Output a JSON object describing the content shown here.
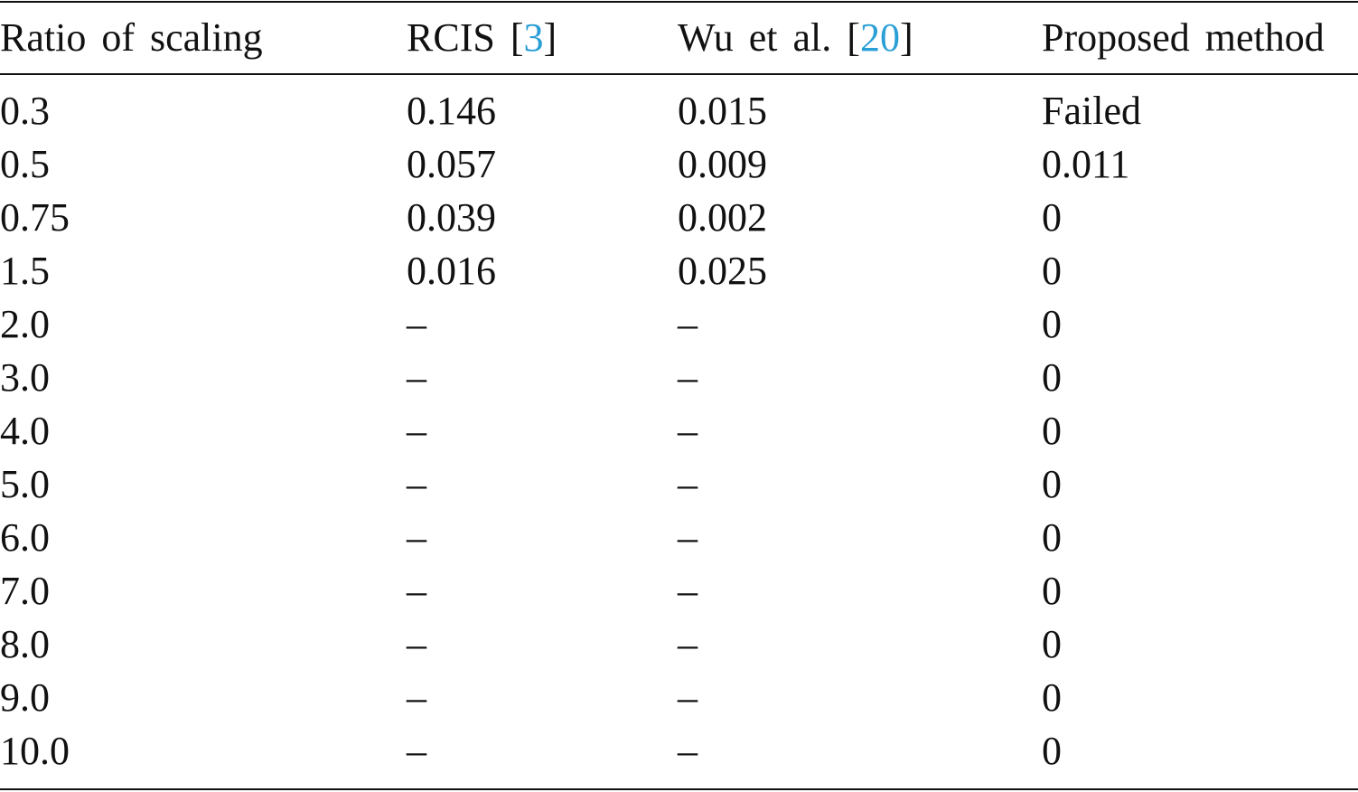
{
  "table": {
    "header": [
      [
        "Ratio of scaling"
      ],
      [
        "RCIS [",
        "3",
        "]"
      ],
      [
        "Wu et al. [",
        "20",
        "]"
      ],
      [
        "Proposed method"
      ]
    ],
    "rows": [
      [
        "0.3",
        "0.146",
        "0.015",
        "Failed"
      ],
      [
        "0.5",
        "0.057",
        "0.009",
        "0.011"
      ],
      [
        "0.75",
        "0.039",
        "0.002",
        "0"
      ],
      [
        "1.5",
        "0.016",
        "0.025",
        "0"
      ],
      [
        "2.0",
        "–",
        "–",
        "0"
      ],
      [
        "3.0",
        "–",
        "–",
        "0"
      ],
      [
        "4.0",
        "–",
        "–",
        "0"
      ],
      [
        "5.0",
        "–",
        "–",
        "0"
      ],
      [
        "6.0",
        "–",
        "–",
        "0"
      ],
      [
        "7.0",
        "–",
        "–",
        "0"
      ],
      [
        "8.0",
        "–",
        "–",
        "0"
      ],
      [
        "9.0",
        "–",
        "–",
        "0"
      ],
      [
        "10.0",
        "–",
        "–",
        "0"
      ]
    ]
  }
}
